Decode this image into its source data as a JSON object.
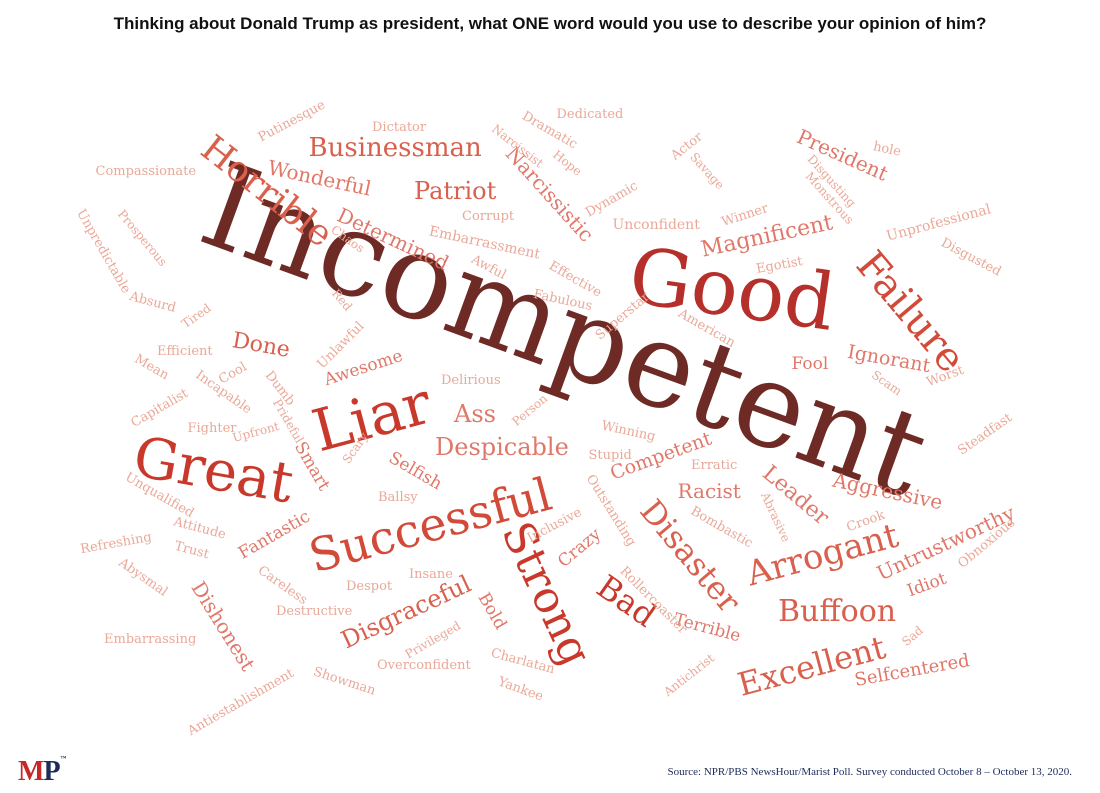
{
  "title": "Thinking about Donald Trump as president, what ONE word would you use to describe your opinion of him?",
  "logo": {
    "m": "M",
    "p": "P",
    "tm": "™"
  },
  "source": "Source: NPR/PBS NewsHour/Marist Poll. Survey conducted October 8 – October 13, 2020.",
  "colors": {
    "dark": "#6e2a25",
    "red": "#c9392b",
    "mid": "#d8604d",
    "light": "#e69080",
    "pale": "#eaa898"
  },
  "words": [
    {
      "text": "Incompetent",
      "weight": 100,
      "color": "#6e2a25"
    },
    {
      "text": "Good",
      "weight": 60,
      "color": "#b5302b"
    },
    {
      "text": "Great",
      "weight": 50,
      "color": "#c9392b"
    },
    {
      "text": "Liar",
      "weight": 48,
      "color": "#c9392b"
    },
    {
      "text": "Successful",
      "weight": 44,
      "color": "#d24a38"
    },
    {
      "text": "Strong",
      "weight": 42,
      "color": "#c9392b"
    },
    {
      "text": "Failure",
      "weight": 38,
      "color": "#d24a38"
    },
    {
      "text": "Horrible",
      "weight": 34,
      "color": "#d8604d"
    },
    {
      "text": "Arrogant",
      "weight": 32,
      "color": "#d8604d"
    },
    {
      "text": "Disaster",
      "weight": 30,
      "color": "#d8604d"
    },
    {
      "text": "Excellent",
      "weight": 30,
      "color": "#d8604d"
    },
    {
      "text": "Bad",
      "weight": 30,
      "color": "#c9392b"
    },
    {
      "text": "Buffoon",
      "weight": 28,
      "color": "#d8604d"
    },
    {
      "text": "Businessman",
      "weight": 24,
      "color": "#d8604d"
    },
    {
      "text": "Despicable",
      "weight": 22,
      "color": "#e0786a"
    },
    {
      "text": "Patriot",
      "weight": 22,
      "color": "#d8604d"
    },
    {
      "text": "Disgraceful",
      "weight": 22,
      "color": "#d8604d"
    },
    {
      "text": "Ass",
      "weight": 22,
      "color": "#e0786a"
    },
    {
      "text": "Done",
      "weight": 20,
      "color": "#d8604d"
    },
    {
      "text": "Magnificent",
      "weight": 20,
      "color": "#e0786a"
    },
    {
      "text": "Narcissistic",
      "weight": 20,
      "color": "#e0786a"
    },
    {
      "text": "Leader",
      "weight": 20,
      "color": "#e0786a"
    },
    {
      "text": "Untrustworthy",
      "weight": 20,
      "color": "#e0786a"
    },
    {
      "text": "Aggressive",
      "weight": 18,
      "color": "#e0786a"
    },
    {
      "text": "Wonderful",
      "weight": 18,
      "color": "#e0786a"
    },
    {
      "text": "Determined",
      "weight": 18,
      "color": "#e0786a"
    },
    {
      "text": "President",
      "weight": 18,
      "color": "#e0786a"
    },
    {
      "text": "Competent",
      "weight": 18,
      "color": "#e0786a"
    },
    {
      "text": "Racist",
      "weight": 18,
      "color": "#e0786a"
    },
    {
      "text": "Dishonest",
      "weight": 18,
      "color": "#e0786a"
    },
    {
      "text": "Selfcentered",
      "weight": 18,
      "color": "#e0786a"
    },
    {
      "text": "Ignorant",
      "weight": 18,
      "color": "#e0786a"
    },
    {
      "text": "Fantastic",
      "weight": 16,
      "color": "#e0786a"
    },
    {
      "text": "Awesome",
      "weight": 16,
      "color": "#e0786a"
    },
    {
      "text": "Smart",
      "weight": 16,
      "color": "#e0786a"
    },
    {
      "text": "Terrible",
      "weight": 16,
      "color": "#e0786a"
    },
    {
      "text": "Idiot",
      "weight": 16,
      "color": "#e0786a"
    },
    {
      "text": "Fool",
      "weight": 16,
      "color": "#e0786a"
    },
    {
      "text": "Crazy",
      "weight": 16,
      "color": "#e0786a"
    },
    {
      "text": "Selfish",
      "weight": 16,
      "color": "#e0786a"
    },
    {
      "text": "Bold",
      "weight": 16,
      "color": "#e0786a"
    },
    {
      "text": "Compassionate",
      "weight": 10,
      "color": "#eaa898"
    },
    {
      "text": "Putinesque",
      "weight": 10,
      "color": "#eaa898"
    },
    {
      "text": "Dictator",
      "weight": 10,
      "color": "#eaa898"
    },
    {
      "text": "Dramatic",
      "weight": 10,
      "color": "#eaa898"
    },
    {
      "text": "Dedicated",
      "weight": 10,
      "color": "#eaa898"
    },
    {
      "text": "Narcissist",
      "weight": 10,
      "color": "#eaa898"
    },
    {
      "text": "Hope",
      "weight": 10,
      "color": "#eaa898"
    },
    {
      "text": "Actor",
      "weight": 10,
      "color": "#eaa898"
    },
    {
      "text": "hole",
      "weight": 10,
      "color": "#eaa898"
    },
    {
      "text": "Savage",
      "weight": 10,
      "color": "#eaa898"
    },
    {
      "text": "Disgusting",
      "weight": 10,
      "color": "#eaa898"
    },
    {
      "text": "Monstrous",
      "weight": 10,
      "color": "#eaa898"
    },
    {
      "text": "Unpredictable",
      "weight": 10,
      "color": "#eaa898"
    },
    {
      "text": "Prosperous",
      "weight": 10,
      "color": "#eaa898"
    },
    {
      "text": "Chaos",
      "weight": 10,
      "color": "#eaa898"
    },
    {
      "text": "Corrupt",
      "weight": 10,
      "color": "#eaa898"
    },
    {
      "text": "Dynamic",
      "weight": 10,
      "color": "#eaa898"
    },
    {
      "text": "Winner",
      "weight": 10,
      "color": "#eaa898"
    },
    {
      "text": "Unconfident",
      "weight": 11,
      "color": "#eaa898"
    },
    {
      "text": "Unprofessional",
      "weight": 10,
      "color": "#eaa898"
    },
    {
      "text": "Disgusted",
      "weight": 10,
      "color": "#eaa898"
    },
    {
      "text": "Embarrassment",
      "weight": 11,
      "color": "#eaa898"
    },
    {
      "text": "Awful",
      "weight": 10,
      "color": "#eaa898"
    },
    {
      "text": "Effective",
      "weight": 10,
      "color": "#eaa898"
    },
    {
      "text": "Egotist",
      "weight": 10,
      "color": "#eaa898"
    },
    {
      "text": "Absurd",
      "weight": 10,
      "color": "#eaa898"
    },
    {
      "text": "Tired",
      "weight": 10,
      "color": "#eaa898"
    },
    {
      "text": "Red",
      "weight": 10,
      "color": "#eaa898"
    },
    {
      "text": "Fabulous",
      "weight": 10,
      "color": "#eaa898"
    },
    {
      "text": "Superstar",
      "weight": 10,
      "color": "#eaa898"
    },
    {
      "text": "American",
      "weight": 10,
      "color": "#eaa898"
    },
    {
      "text": "Efficient",
      "weight": 10,
      "color": "#eaa898"
    },
    {
      "text": "Unlawful",
      "weight": 10,
      "color": "#eaa898"
    },
    {
      "text": "Mean",
      "weight": 10,
      "color": "#eaa898"
    },
    {
      "text": "Cool",
      "weight": 10,
      "color": "#eaa898"
    },
    {
      "text": "Incapable",
      "weight": 10,
      "color": "#eaa898"
    },
    {
      "text": "Dumb",
      "weight": 10,
      "color": "#eaa898"
    },
    {
      "text": "Delirious",
      "weight": 10,
      "color": "#eaa898"
    },
    {
      "text": "Scam",
      "weight": 10,
      "color": "#eaa898"
    },
    {
      "text": "Worst",
      "weight": 10,
      "color": "#eaa898"
    },
    {
      "text": "Capitalist",
      "weight": 10,
      "color": "#eaa898"
    },
    {
      "text": "Prideful",
      "weight": 10,
      "color": "#eaa898"
    },
    {
      "text": "Person",
      "weight": 10,
      "color": "#eaa898"
    },
    {
      "text": "Fighter",
      "weight": 10,
      "color": "#eaa898"
    },
    {
      "text": "Upfront",
      "weight": 10,
      "color": "#eaa898"
    },
    {
      "text": "Scary",
      "weight": 10,
      "color": "#eaa898"
    },
    {
      "text": "Winning",
      "weight": 10,
      "color": "#eaa898"
    },
    {
      "text": "Steadfast",
      "weight": 10,
      "color": "#eaa898"
    },
    {
      "text": "Stupid",
      "weight": 10,
      "color": "#eaa898"
    },
    {
      "text": "Erratic",
      "weight": 10,
      "color": "#eaa898"
    },
    {
      "text": "Unqualified",
      "weight": 10,
      "color": "#eaa898"
    },
    {
      "text": "Ballsy",
      "weight": 10,
      "color": "#eaa898"
    },
    {
      "text": "Outstanding",
      "weight": 10,
      "color": "#eaa898"
    },
    {
      "text": "Abrasive",
      "weight": 10,
      "color": "#eaa898"
    },
    {
      "text": "Attitude",
      "weight": 10,
      "color": "#eaa898"
    },
    {
      "text": "Inclusive",
      "weight": 10,
      "color": "#eaa898"
    },
    {
      "text": "Bombastic",
      "weight": 10,
      "color": "#eaa898"
    },
    {
      "text": "Crook",
      "weight": 10,
      "color": "#eaa898"
    },
    {
      "text": "Obnoxious",
      "weight": 10,
      "color": "#eaa898"
    },
    {
      "text": "Refreshing",
      "weight": 10,
      "color": "#eaa898"
    },
    {
      "text": "Trust",
      "weight": 10,
      "color": "#eaa898"
    },
    {
      "text": "Abysmal",
      "weight": 10,
      "color": "#eaa898"
    },
    {
      "text": "Careless",
      "weight": 10,
      "color": "#eaa898"
    },
    {
      "text": "Insane",
      "weight": 10,
      "color": "#eaa898"
    },
    {
      "text": "Despot",
      "weight": 10,
      "color": "#eaa898"
    },
    {
      "text": "Rollercoaster",
      "weight": 10,
      "color": "#eaa898"
    },
    {
      "text": "Destructive",
      "weight": 10,
      "color": "#eaa898"
    },
    {
      "text": "Embarrassing",
      "weight": 10,
      "color": "#eaa898"
    },
    {
      "text": "Privileged",
      "weight": 10,
      "color": "#eaa898"
    },
    {
      "text": "Charlatan",
      "weight": 10,
      "color": "#eaa898"
    },
    {
      "text": "Sad",
      "weight": 10,
      "color": "#eaa898"
    },
    {
      "text": "Overconfident",
      "weight": 10,
      "color": "#eaa898"
    },
    {
      "text": "Antichrist",
      "weight": 10,
      "color": "#eaa898"
    },
    {
      "text": "Showman",
      "weight": 10,
      "color": "#eaa898"
    },
    {
      "text": "Yankee",
      "weight": 10,
      "color": "#eaa898"
    },
    {
      "text": "Antiestablishment",
      "weight": 10,
      "color": "#eaa898"
    }
  ]
}
